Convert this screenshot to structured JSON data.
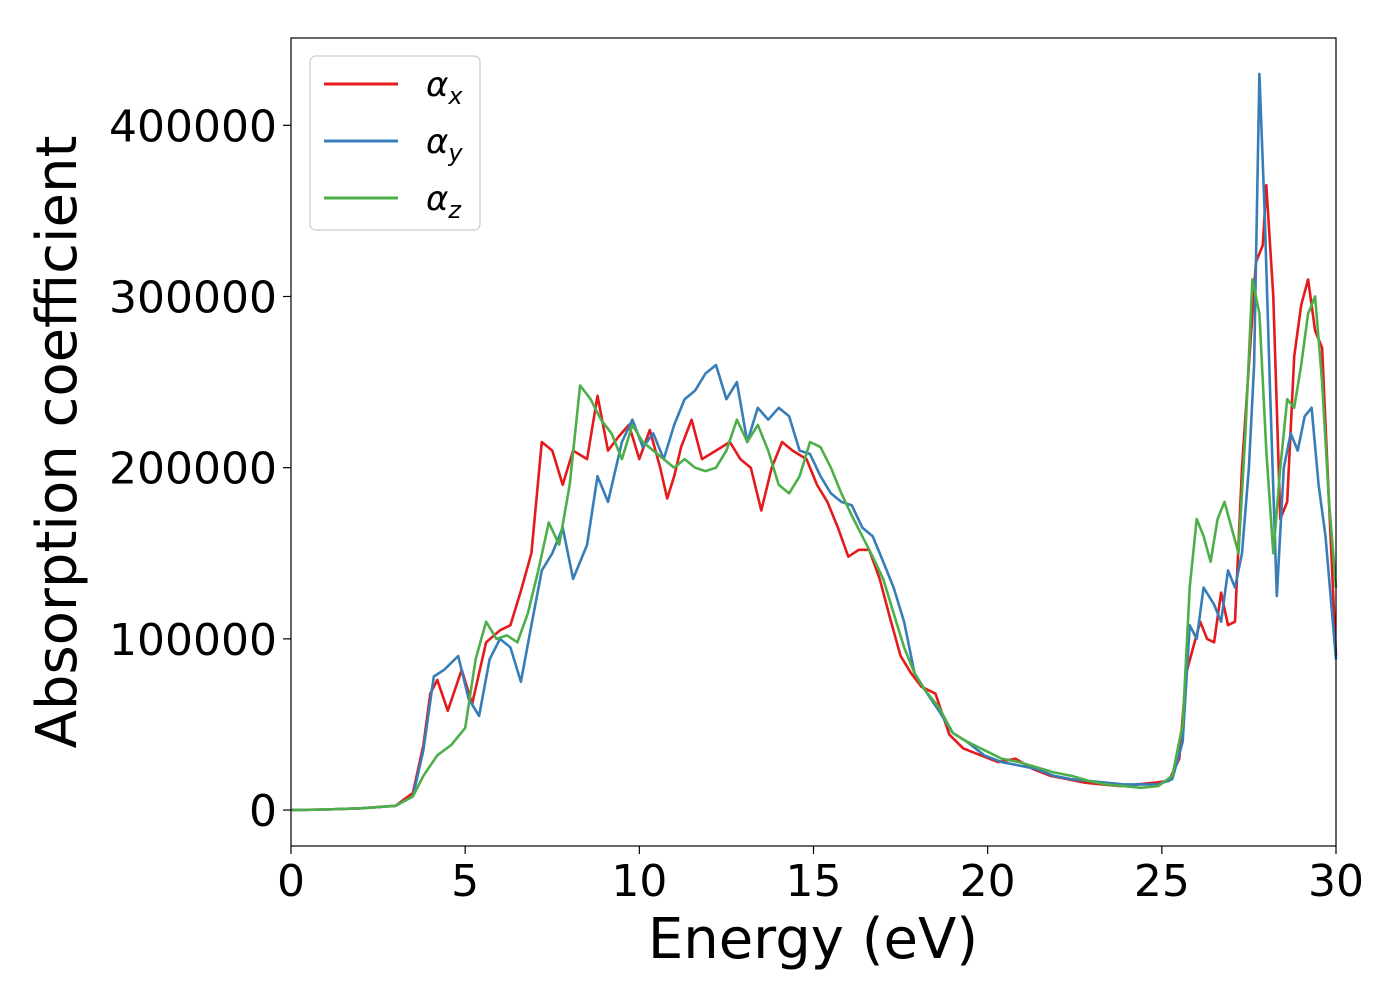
{
  "chart_data": {
    "type": "line",
    "xlabel": "Energy (eV)",
    "ylabel": "Absorption coefficient",
    "xlim": [
      0,
      30
    ],
    "ylim": [
      -21000,
      451000
    ],
    "xticks": [
      0,
      5,
      10,
      15,
      20,
      25,
      30
    ],
    "yticks": [
      0,
      100000,
      200000,
      300000,
      400000
    ],
    "grid": false,
    "legend_position": "top-left",
    "series": [
      {
        "name": "αx",
        "base": "α",
        "sub": "x",
        "color": "#e41a1c",
        "x": [
          0,
          1,
          2,
          3,
          3.5,
          3.8,
          4.0,
          4.2,
          4.5,
          4.9,
          5.2,
          5.6,
          6.0,
          6.3,
          6.6,
          6.9,
          7.2,
          7.5,
          7.8,
          8.1,
          8.5,
          8.8,
          9.1,
          9.4,
          9.7,
          10.0,
          10.3,
          10.6,
          10.8,
          11.0,
          11.2,
          11.5,
          11.8,
          12.2,
          12.6,
          12.9,
          13.2,
          13.5,
          13.8,
          14.1,
          14.4,
          14.8,
          15.1,
          15.4,
          15.7,
          16.0,
          16.3,
          16.6,
          16.9,
          17.2,
          17.5,
          17.8,
          18.1,
          18.5,
          18.9,
          19.3,
          19.8,
          20.3,
          20.8,
          21.3,
          21.8,
          22.3,
          22.8,
          23.3,
          23.8,
          24.3,
          24.8,
          25.2,
          25.5,
          25.7,
          25.9,
          26.1,
          26.3,
          26.5,
          26.7,
          26.9,
          27.1,
          27.3,
          27.5,
          27.7,
          27.9,
          28.0,
          28.2,
          28.4,
          28.6,
          28.8,
          29.0,
          29.2,
          29.4,
          29.6,
          29.8,
          30.0
        ],
        "y": [
          0,
          300,
          1000,
          2500,
          10000,
          38000,
          68000,
          76000,
          58000,
          82000,
          62000,
          98000,
          105000,
          108000,
          128000,
          150000,
          215000,
          210000,
          190000,
          210000,
          205000,
          242000,
          210000,
          218000,
          225000,
          205000,
          222000,
          200000,
          182000,
          195000,
          212000,
          228000,
          205000,
          210000,
          215000,
          205000,
          200000,
          175000,
          200000,
          215000,
          210000,
          205000,
          190000,
          180000,
          165000,
          148000,
          152000,
          152000,
          135000,
          112000,
          90000,
          80000,
          72000,
          68000,
          44000,
          36000,
          32000,
          28000,
          30000,
          24000,
          20000,
          18000,
          16000,
          15000,
          14000,
          15000,
          16000,
          17000,
          30000,
          80000,
          95000,
          110000,
          100000,
          98000,
          127000,
          108000,
          110000,
          200000,
          260000,
          320000,
          330000,
          365000,
          300000,
          170000,
          180000,
          265000,
          295000,
          310000,
          280000,
          270000,
          180000,
          90000
        ]
      },
      {
        "name": "αy",
        "base": "α",
        "sub": "y",
        "color": "#377eb8",
        "x": [
          0,
          1,
          2,
          3,
          3.5,
          3.8,
          4.1,
          4.4,
          4.8,
          5.1,
          5.4,
          5.7,
          6.0,
          6.3,
          6.6,
          6.9,
          7.2,
          7.5,
          7.8,
          8.1,
          8.5,
          8.8,
          9.1,
          9.5,
          9.8,
          10.1,
          10.4,
          10.7,
          11.0,
          11.3,
          11.6,
          11.9,
          12.2,
          12.5,
          12.8,
          13.1,
          13.4,
          13.7,
          14.0,
          14.3,
          14.6,
          14.9,
          15.2,
          15.5,
          15.8,
          16.1,
          16.4,
          16.7,
          17.0,
          17.3,
          17.6,
          17.9,
          18.2,
          18.6,
          19.0,
          19.4,
          19.9,
          20.4,
          20.9,
          21.4,
          21.9,
          22.4,
          22.9,
          23.4,
          23.9,
          24.4,
          24.9,
          25.3,
          25.6,
          25.8,
          26.0,
          26.2,
          26.5,
          26.7,
          26.9,
          27.1,
          27.3,
          27.5,
          27.65,
          27.8,
          27.95,
          28.1,
          28.3,
          28.5,
          28.7,
          28.9,
          29.1,
          29.3,
          29.5,
          29.7,
          30.0
        ],
        "y": [
          0,
          300,
          1000,
          2500,
          8000,
          35000,
          78000,
          82000,
          90000,
          65000,
          55000,
          88000,
          100000,
          95000,
          75000,
          108000,
          140000,
          150000,
          165000,
          135000,
          155000,
          195000,
          180000,
          215000,
          228000,
          212000,
          220000,
          205000,
          225000,
          240000,
          245000,
          255000,
          260000,
          240000,
          250000,
          215000,
          235000,
          228000,
          235000,
          230000,
          210000,
          208000,
          195000,
          185000,
          180000,
          178000,
          165000,
          160000,
          145000,
          130000,
          110000,
          80000,
          70000,
          58000,
          45000,
          40000,
          32000,
          28000,
          26000,
          24000,
          20000,
          18000,
          17000,
          16000,
          15000,
          15000,
          15000,
          18000,
          40000,
          108000,
          100000,
          130000,
          120000,
          110000,
          140000,
          130000,
          150000,
          200000,
          260000,
          430000,
          350000,
          250000,
          125000,
          200000,
          220000,
          210000,
          230000,
          235000,
          190000,
          160000,
          88000
        ]
      },
      {
        "name": "αz",
        "base": "α",
        "sub": "z",
        "color": "#4daf4a",
        "x": [
          0,
          1,
          2,
          3,
          3.5,
          3.8,
          4.2,
          4.6,
          5.0,
          5.3,
          5.6,
          5.9,
          6.2,
          6.5,
          6.8,
          7.1,
          7.4,
          7.7,
          8.0,
          8.3,
          8.6,
          8.9,
          9.2,
          9.5,
          9.8,
          10.1,
          10.4,
          10.7,
          11.0,
          11.3,
          11.6,
          11.9,
          12.2,
          12.5,
          12.8,
          13.1,
          13.4,
          13.7,
          14.0,
          14.3,
          14.6,
          14.9,
          15.2,
          15.5,
          15.8,
          16.1,
          16.4,
          16.7,
          17.0,
          17.3,
          17.6,
          17.9,
          18.2,
          18.6,
          19.0,
          19.4,
          19.9,
          20.4,
          20.9,
          21.4,
          21.9,
          22.4,
          22.9,
          23.4,
          23.9,
          24.4,
          24.9,
          25.3,
          25.6,
          25.8,
          26.0,
          26.2,
          26.4,
          26.6,
          26.8,
          27.0,
          27.2,
          27.4,
          27.6,
          27.8,
          28.0,
          28.2,
          28.4,
          28.6,
          28.8,
          29.0,
          29.2,
          29.4,
          29.6,
          29.8,
          30.0
        ],
        "y": [
          0,
          300,
          1000,
          2500,
          8000,
          20000,
          32000,
          38000,
          48000,
          88000,
          110000,
          100000,
          102000,
          98000,
          115000,
          140000,
          168000,
          155000,
          190000,
          248000,
          240000,
          228000,
          220000,
          205000,
          225000,
          215000,
          210000,
          205000,
          200000,
          205000,
          200000,
          198000,
          200000,
          210000,
          228000,
          215000,
          225000,
          210000,
          190000,
          185000,
          195000,
          215000,
          212000,
          200000,
          185000,
          172000,
          160000,
          148000,
          135000,
          115000,
          95000,
          80000,
          70000,
          60000,
          45000,
          40000,
          35000,
          30000,
          28000,
          25000,
          22000,
          20000,
          17000,
          15000,
          14000,
          13000,
          14000,
          20000,
          50000,
          130000,
          170000,
          160000,
          145000,
          170000,
          180000,
          165000,
          150000,
          220000,
          310000,
          290000,
          210000,
          150000,
          200000,
          240000,
          235000,
          260000,
          290000,
          300000,
          250000,
          180000,
          130000
        ]
      }
    ]
  }
}
